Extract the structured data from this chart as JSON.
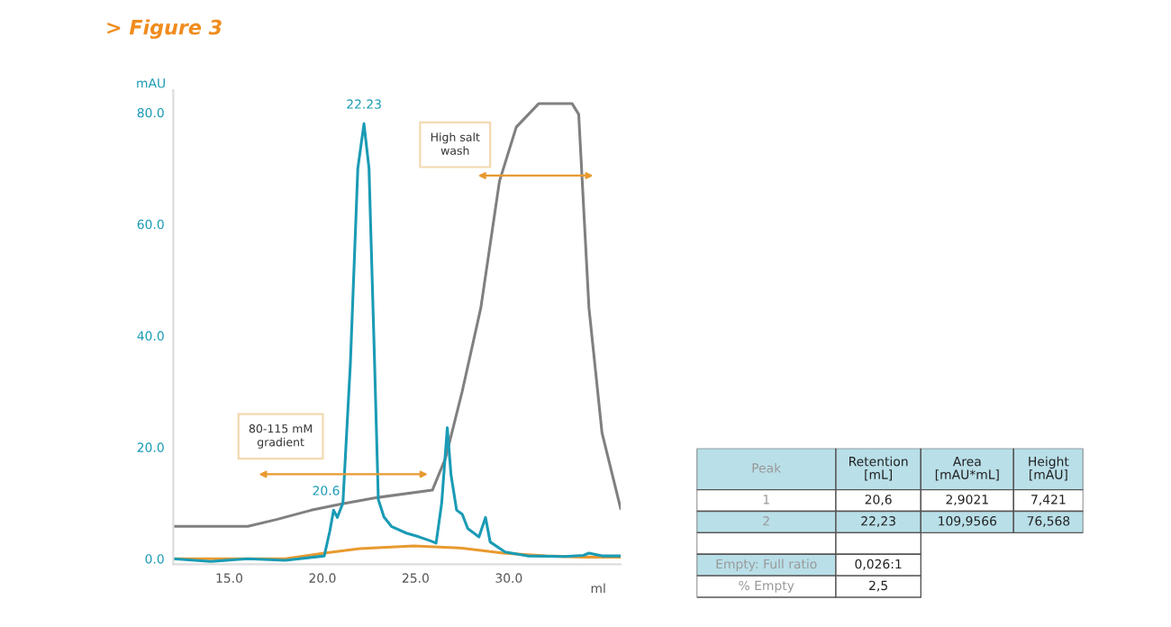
{
  "chart_data": [
    {
      "type": "line",
      "title": "> Figure 3",
      "xlabel": "ml",
      "ylabel": "mAU",
      "xlim": [
        12,
        36
      ],
      "ylim": [
        -1,
        84
      ],
      "xticks": [
        {
          "value": 15,
          "label": "15.0"
        },
        {
          "value": 20,
          "label": "20.0"
        },
        {
          "value": 25,
          "label": "25.0"
        },
        {
          "value": 30,
          "label": "30.0"
        }
      ],
      "yticks": [
        {
          "value": 0,
          "label": "0.0"
        },
        {
          "value": 20,
          "label": "20.0"
        },
        {
          "value": 40,
          "label": "40.0"
        },
        {
          "value": 60,
          "label": "60.0"
        },
        {
          "value": 80,
          "label": "80.0"
        }
      ],
      "grid": false,
      "legend": false,
      "series": [
        {
          "color": "#808080",
          "x": [
            12,
            14,
            16,
            17.5,
            19.4,
            21,
            23,
            25.9,
            26.6,
            27.5,
            28.5,
            29.5,
            30.4,
            31.6,
            33.4,
            33.75,
            34.3,
            35,
            36
          ],
          "values": [
            5.8,
            5.8,
            5.8,
            7,
            8.7,
            9.8,
            11,
            12.3,
            18,
            30,
            45,
            67.7,
            77.4,
            81.6,
            81.6,
            79.7,
            45,
            22.6,
            9
          ]
        },
        {
          "color": "#e89a30",
          "x": [
            12,
            18,
            20.1,
            22,
            24.9,
            27.5,
            29.7,
            32,
            34,
            36
          ],
          "values": [
            0,
            0,
            1,
            1.8,
            2.3,
            1.9,
            1,
            0.5,
            0.3,
            0.3
          ]
        },
        {
          "color": "#1a9bb5",
          "x": [
            12,
            14,
            16,
            18,
            20.1,
            20.4,
            20.6,
            20.8,
            21.1,
            21.5,
            21.9,
            22.23,
            22.5,
            22.8,
            23.0,
            23.3,
            23.7,
            24.5,
            25.2,
            25.8,
            26.1,
            26.4,
            26.7,
            26.9,
            27.2,
            27.5,
            27.8,
            28.4,
            28.75,
            29.0,
            29.8,
            31,
            33,
            34,
            34.3,
            35,
            36
          ],
          "values": [
            0,
            -0.5,
            0,
            -0.3,
            0.5,
            5,
            8.7,
            7.4,
            10,
            35,
            70,
            78,
            70,
            35,
            10.6,
            7.5,
            5.8,
            4.6,
            3.9,
            3.2,
            2.8,
            10,
            23.5,
            15,
            8.7,
            8,
            5.4,
            3.9,
            7.4,
            3,
            1.2,
            0.5,
            0.4,
            0.6,
            1,
            0.5,
            0.5
          ]
        }
      ],
      "annotations": [
        {
          "text": "22.23",
          "x": 22.23,
          "y": 78
        },
        {
          "text": "20.6",
          "x": 20.6,
          "y": 8.7
        },
        "80-115 mM\ngradient",
        "High salt\nwash"
      ]
    },
    {
      "type": "other",
      "annotations": [
        "Peak",
        "Retention\n[mL]",
        "Area\n[mAU*mL]",
        "Height\n[mAU]",
        "1",
        "20,6",
        "2,9021",
        "7,421",
        "2",
        "22,23",
        "109,9566",
        "76,568",
        "Empty: Full ratio",
        "0,026:1",
        "% Empty",
        "2,5"
      ]
    }
  ]
}
